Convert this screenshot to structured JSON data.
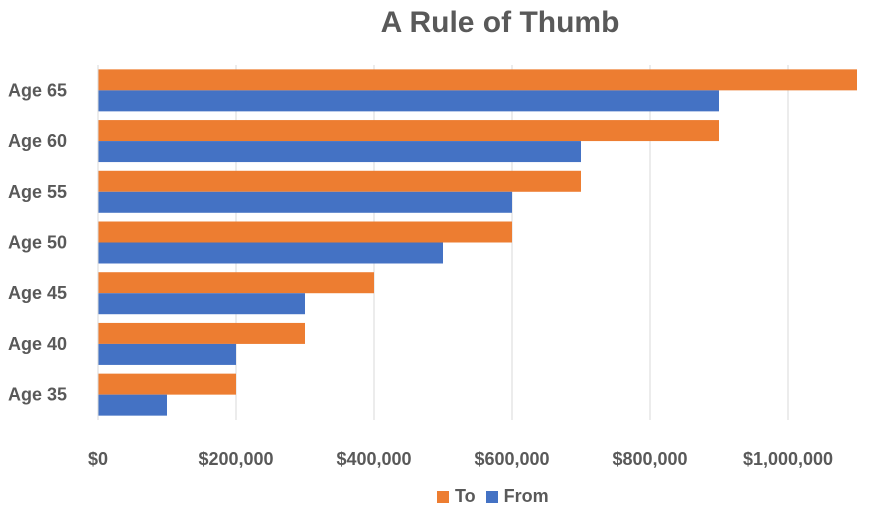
{
  "chart_data": {
    "type": "bar",
    "orientation": "horizontal",
    "title": "A Rule of Thumb",
    "categories": [
      "Age 35",
      "Age 40",
      "Age 45",
      "Age 50",
      "Age 55",
      "Age 60",
      "Age 65"
    ],
    "series": [
      {
        "name": "To",
        "color": "#ED7D31",
        "values": [
          200000,
          300000,
          400000,
          600000,
          700000,
          900000,
          1100000
        ]
      },
      {
        "name": "From",
        "color": "#4472C4",
        "values": [
          100000,
          200000,
          300000,
          500000,
          600000,
          700000,
          900000
        ]
      }
    ],
    "xticks": [
      "$0",
      "$200,000",
      "$400,000",
      "$600,000",
      "$800,000",
      "$1,000,000"
    ],
    "xtick_values": [
      0,
      200000,
      400000,
      600000,
      800000,
      1000000
    ],
    "xlim": [
      0,
      1100000
    ],
    "grid": "vertical",
    "legend": "bottom"
  }
}
